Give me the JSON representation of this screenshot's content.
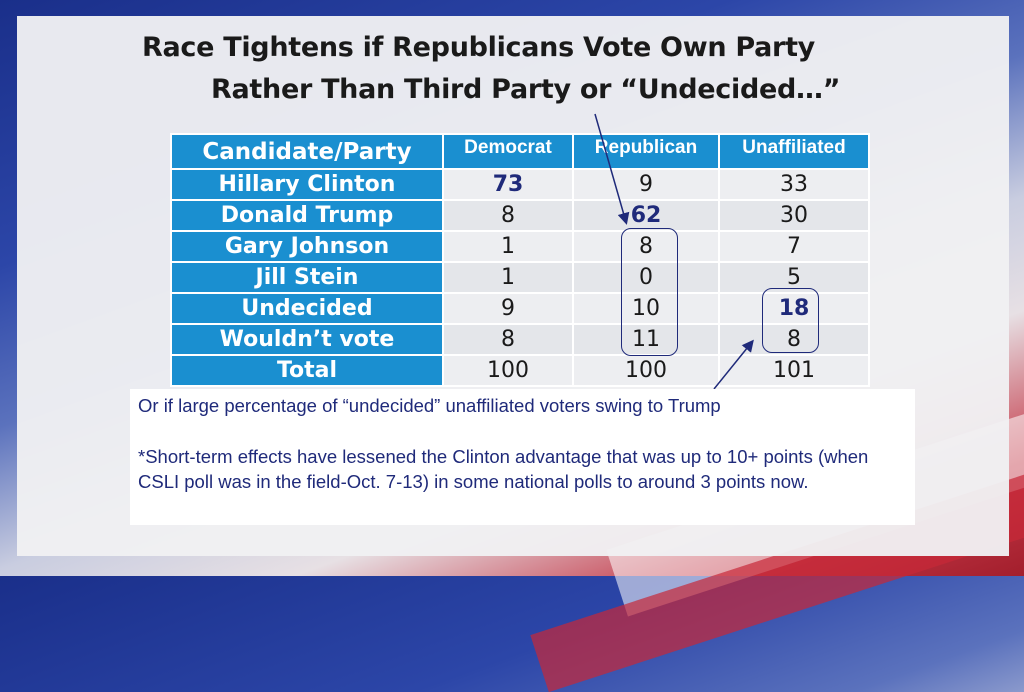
{
  "title": {
    "line1": "Race Tightens if Republicans Vote Own Party",
    "line2": "Rather Than Third Party or “Undecided…”"
  },
  "table": {
    "headers": [
      "Candidate/Party",
      "Democrat",
      "Republican",
      "Unaffiliated"
    ],
    "rows": [
      {
        "name": "Hillary Clinton",
        "dem": "73",
        "rep": "9",
        "una": "33"
      },
      {
        "name": "Donald Trump",
        "dem": "8",
        "rep": "62",
        "una": "30"
      },
      {
        "name": "Gary Johnson",
        "dem": "1",
        "rep": "8",
        "una": "7"
      },
      {
        "name": "Jill Stein",
        "dem": "1",
        "rep": "0",
        "una": "5"
      },
      {
        "name": "Undecided",
        "dem": "9",
        "rep": "10",
        "una": "18"
      },
      {
        "name": "Wouldn’t vote",
        "dem": "8",
        "rep": "11",
        "una": "8"
      },
      {
        "name": "Total",
        "dem": "100",
        "rep": "100",
        "una": "101"
      }
    ]
  },
  "note": {
    "line1": "Or if large percentage of “undecided” unaffiliated voters swing to Trump",
    "line2": "*Short-term effects have lessened the Clinton advantage that was up to 10+ points (when CSLI poll was in the field-Oct. 7-13) in some national polls to around 3 points now."
  },
  "colors": {
    "header_blue": "#1a8fd0",
    "emphasis_navy": "#1f2a7a"
  }
}
